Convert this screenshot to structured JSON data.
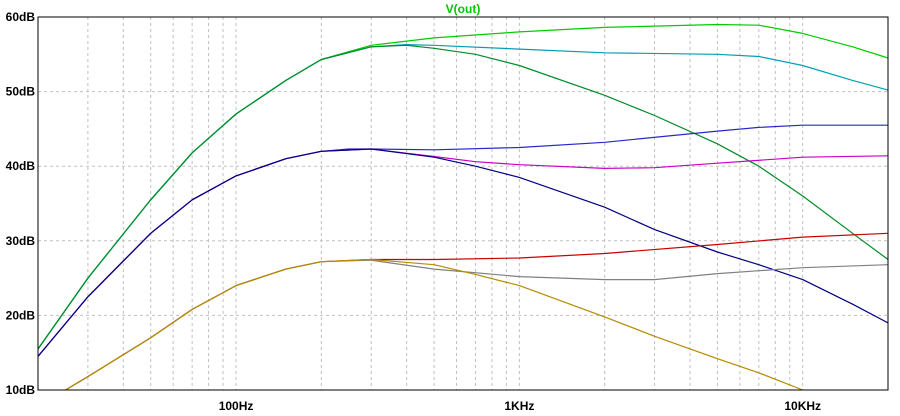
{
  "chart_data": {
    "type": "line",
    "title": "V(out)",
    "title_color": "#00c800",
    "x_scale": "log",
    "xlim": [
      20,
      20000
    ],
    "ylim": [
      10,
      60
    ],
    "x_ticks": [
      {
        "value": 100,
        "label": "100Hz"
      },
      {
        "value": 1000,
        "label": "1KHz"
      },
      {
        "value": 10000,
        "label": "10KHz"
      }
    ],
    "y_ticks": [
      {
        "value": 10,
        "label": "10dB"
      },
      {
        "value": 20,
        "label": "20dB"
      },
      {
        "value": 30,
        "label": "30dB"
      },
      {
        "value": 40,
        "label": "40dB"
      },
      {
        "value": 50,
        "label": "50dB"
      },
      {
        "value": 60,
        "label": "60dB"
      }
    ],
    "grid": true,
    "series": [
      {
        "color": "#00cc00",
        "points": [
          [
            20,
            15.5
          ],
          [
            30,
            25
          ],
          [
            50,
            35.5
          ],
          [
            70,
            41.8
          ],
          [
            100,
            47
          ],
          [
            150,
            51.5
          ],
          [
            200,
            54.3
          ],
          [
            300,
            56.2
          ],
          [
            500,
            57.2
          ],
          [
            1000,
            58
          ],
          [
            2000,
            58.6
          ],
          [
            5000,
            59
          ],
          [
            7000,
            58.9
          ],
          [
            10000,
            57.8
          ],
          [
            15000,
            56
          ],
          [
            20000,
            54.5
          ]
        ]
      },
      {
        "color": "#00a0b4",
        "points": [
          [
            20,
            15.5
          ],
          [
            30,
            25
          ],
          [
            50,
            35.5
          ],
          [
            70,
            41.8
          ],
          [
            100,
            47
          ],
          [
            150,
            51.5
          ],
          [
            200,
            54.3
          ],
          [
            300,
            56
          ],
          [
            400,
            56.3
          ],
          [
            500,
            56.2
          ],
          [
            1000,
            55.7
          ],
          [
            2000,
            55.2
          ],
          [
            5000,
            55
          ],
          [
            7000,
            54.7
          ],
          [
            10000,
            53.5
          ],
          [
            15000,
            51.5
          ],
          [
            20000,
            50.2
          ]
        ]
      },
      {
        "color": "#008c28",
        "points": [
          [
            20,
            15.5
          ],
          [
            30,
            25
          ],
          [
            50,
            35.5
          ],
          [
            70,
            41.8
          ],
          [
            100,
            47
          ],
          [
            150,
            51.5
          ],
          [
            200,
            54.3
          ],
          [
            300,
            56
          ],
          [
            400,
            56.2
          ],
          [
            500,
            55.8
          ],
          [
            700,
            55
          ],
          [
            1000,
            53.5
          ],
          [
            2000,
            49.5
          ],
          [
            3000,
            46.8
          ],
          [
            5000,
            43
          ],
          [
            7000,
            40
          ],
          [
            10000,
            36
          ],
          [
            15000,
            31
          ],
          [
            20000,
            27.5
          ]
        ]
      },
      {
        "color": "#2828c8",
        "points": [
          [
            20,
            14.5
          ],
          [
            30,
            22.5
          ],
          [
            50,
            31
          ],
          [
            70,
            35.5
          ],
          [
            100,
            38.7
          ],
          [
            150,
            41
          ],
          [
            200,
            42
          ],
          [
            250,
            42.3
          ],
          [
            300,
            42.3
          ],
          [
            500,
            42.2
          ],
          [
            1000,
            42.5
          ],
          [
            2000,
            43.2
          ],
          [
            5000,
            44.7
          ],
          [
            7000,
            45.2
          ],
          [
            10000,
            45.5
          ],
          [
            20000,
            45.5
          ]
        ]
      },
      {
        "color": "#c800c8",
        "points": [
          [
            20,
            14.5
          ],
          [
            30,
            22.5
          ],
          [
            50,
            31
          ],
          [
            70,
            35.5
          ],
          [
            100,
            38.7
          ],
          [
            150,
            41
          ],
          [
            200,
            42
          ],
          [
            300,
            42.3
          ],
          [
            500,
            41.3
          ],
          [
            700,
            40.6
          ],
          [
            1000,
            40.2
          ],
          [
            2000,
            39.7
          ],
          [
            3000,
            39.8
          ],
          [
            5000,
            40.4
          ],
          [
            10000,
            41.2
          ],
          [
            20000,
            41.4
          ]
        ]
      },
      {
        "color": "#000080",
        "points": [
          [
            20,
            14.5
          ],
          [
            30,
            22.5
          ],
          [
            50,
            31
          ],
          [
            70,
            35.5
          ],
          [
            100,
            38.7
          ],
          [
            150,
            41
          ],
          [
            200,
            42
          ],
          [
            300,
            42.3
          ],
          [
            500,
            41.2
          ],
          [
            700,
            40
          ],
          [
            1000,
            38.5
          ],
          [
            2000,
            34.5
          ],
          [
            3000,
            31.5
          ],
          [
            5000,
            28.5
          ],
          [
            7000,
            26.8
          ],
          [
            10000,
            24.8
          ],
          [
            15000,
            21.5
          ],
          [
            20000,
            19
          ]
        ]
      },
      {
        "color": "#c80000",
        "points": [
          [
            25,
            10
          ],
          [
            30,
            11.8
          ],
          [
            50,
            17
          ],
          [
            70,
            20.8
          ],
          [
            100,
            24
          ],
          [
            150,
            26.2
          ],
          [
            200,
            27.2
          ],
          [
            300,
            27.5
          ],
          [
            500,
            27.5
          ],
          [
            1000,
            27.7
          ],
          [
            2000,
            28.3
          ],
          [
            5000,
            29.5
          ],
          [
            10000,
            30.5
          ],
          [
            20000,
            31
          ]
        ]
      },
      {
        "color": "#808080",
        "points": [
          [
            25,
            10
          ],
          [
            30,
            11.8
          ],
          [
            50,
            17
          ],
          [
            70,
            20.8
          ],
          [
            100,
            24
          ],
          [
            150,
            26.2
          ],
          [
            200,
            27.2
          ],
          [
            300,
            27.4
          ],
          [
            500,
            26.2
          ],
          [
            1000,
            25.2
          ],
          [
            2000,
            24.8
          ],
          [
            3000,
            24.8
          ],
          [
            5000,
            25.6
          ],
          [
            10000,
            26.4
          ],
          [
            20000,
            26.8
          ]
        ]
      },
      {
        "color": "#b48c00",
        "points": [
          [
            25,
            10
          ],
          [
            30,
            11.8
          ],
          [
            50,
            17
          ],
          [
            70,
            20.8
          ],
          [
            100,
            24
          ],
          [
            150,
            26.2
          ],
          [
            200,
            27.2
          ],
          [
            300,
            27.5
          ],
          [
            500,
            26.8
          ],
          [
            700,
            25.5
          ],
          [
            1000,
            24
          ],
          [
            2000,
            19.8
          ],
          [
            3000,
            17.2
          ],
          [
            5000,
            14.2
          ],
          [
            7000,
            12.3
          ],
          [
            10000,
            10
          ]
        ]
      }
    ]
  }
}
